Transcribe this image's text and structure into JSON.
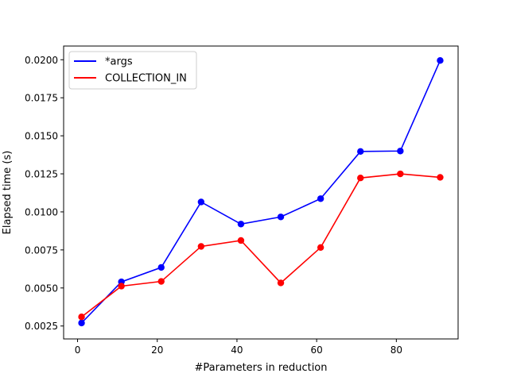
{
  "chart_data": {
    "type": "line",
    "title": "",
    "xlabel": "#Parameters in reduction",
    "ylabel": "Elapsed time (s)",
    "xlim": [
      -3.5,
      95.5
    ],
    "ylim": [
      0.00165,
      0.0209
    ],
    "xticks": [
      0,
      20,
      40,
      60,
      80
    ],
    "xtick_labels": [
      "0",
      "20",
      "40",
      "60",
      "80"
    ],
    "yticks": [
      0.0025,
      0.005,
      0.0075,
      0.01,
      0.0125,
      0.015,
      0.0175,
      0.02
    ],
    "ytick_labels": [
      "0.0025",
      "0.0050",
      "0.0075",
      "0.0100",
      "0.0125",
      "0.0150",
      "0.0175",
      "0.0200"
    ],
    "grid": false,
    "legend_position": "upper-left",
    "x": [
      1,
      11,
      21,
      31,
      41,
      51,
      61,
      71,
      81,
      91
    ],
    "series": [
      {
        "name": "*args",
        "color": "#0000ff",
        "values": [
          0.0027,
          0.0054,
          0.00635,
          0.01065,
          0.0092,
          0.00967,
          0.01087,
          0.01397,
          0.014,
          0.01995
        ]
      },
      {
        "name": "COLLECTION_IN",
        "color": "#ff0000",
        "values": [
          0.0031,
          0.00512,
          0.00543,
          0.00773,
          0.00812,
          0.00533,
          0.00766,
          0.01223,
          0.0125,
          0.01227
        ]
      }
    ]
  }
}
